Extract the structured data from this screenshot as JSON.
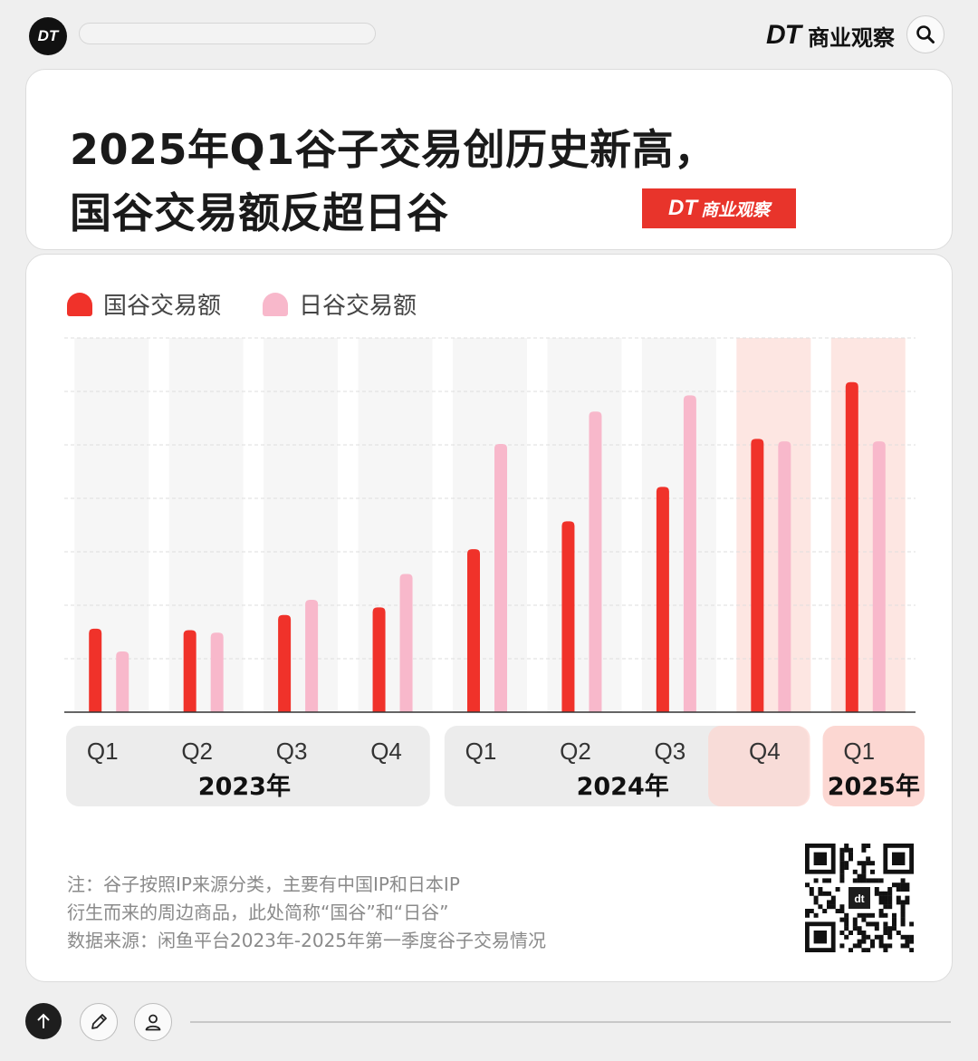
{
  "header": {
    "logo_text": "DT",
    "brand_mark": "DT",
    "brand_name": "商业观察",
    "search_icon": "search-icon"
  },
  "title": {
    "line1": "2025年Q1谷子交易创历史新高，",
    "line2": "国谷交易额反超日谷",
    "stamp_mark": "DT",
    "stamp_name": "商业观察"
  },
  "legend": {
    "domestic": "国谷交易额",
    "japanese": "日谷交易额"
  },
  "colors": {
    "domestic": "#f0322a",
    "japanese": "#f8b8cb",
    "highlight": "#fde6e2",
    "pill": "#ececec",
    "pill_highlight": "#fcd7d2"
  },
  "chart_data": {
    "type": "bar",
    "title": "2025年Q1谷子交易创历史新高，国谷交易额反超日谷",
    "categories": [
      "Q1",
      "Q2",
      "Q3",
      "Q4",
      "Q1",
      "Q2",
      "Q3",
      "Q4",
      "Q1"
    ],
    "groups": [
      {
        "label": "2023年",
        "quarters": [
          "Q1",
          "Q2",
          "Q3",
          "Q4"
        ]
      },
      {
        "label": "2024年",
        "quarters": [
          "Q1",
          "Q2",
          "Q3",
          "Q4"
        ]
      },
      {
        "label": "2025年",
        "quarters": [
          "Q1"
        ]
      }
    ],
    "series": [
      {
        "name": "国谷交易额",
        "values": [
          1.65,
          1.62,
          1.92,
          2.07,
          3.22,
          3.77,
          4.45,
          5.4,
          6.52
        ]
      },
      {
        "name": "日谷交易额",
        "values": [
          1.2,
          1.57,
          2.22,
          2.73,
          5.3,
          5.94,
          6.26,
          5.35,
          5.35
        ]
      }
    ],
    "highlighted": [
      7,
      8
    ],
    "ylim": [
      0,
      7
    ],
    "grid": true,
    "y_tick_labels_shown": false,
    "legend_position": "top-left"
  },
  "notes": {
    "line1": "注：谷子按照IP来源分类，主要有中国IP和日本IP",
    "line2": "衍生而来的周边商品，此处简称“国谷”和“日谷”",
    "line3": "数据来源：闲鱼平台2023年-2025年第一季度谷子交易情况"
  },
  "qr": {
    "center_text": "dt"
  },
  "toolbar": {
    "icons": [
      "arrow-up-icon",
      "pencil-icon",
      "user-icon"
    ]
  }
}
